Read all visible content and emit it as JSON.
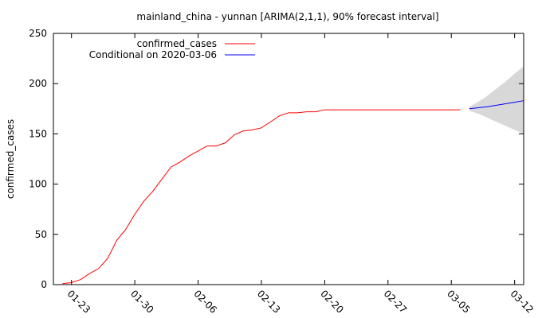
{
  "chart_data": {
    "type": "line",
    "title": "mainland_china - yunnan [ARIMA(2,1,1), 90% forecast interval]",
    "xlabel": "",
    "ylabel": "confirmed_cases",
    "ylim": [
      0,
      250
    ],
    "yticks": [
      "0",
      "50",
      "100",
      "150",
      "200",
      "250"
    ],
    "xlim": [
      "2020-01-21",
      "2020-03-13"
    ],
    "xticks": [
      {
        "date": "2020-01-23",
        "label": "01-23"
      },
      {
        "date": "2020-01-30",
        "label": "01-30"
      },
      {
        "date": "2020-02-06",
        "label": "02-06"
      },
      {
        "date": "2020-02-13",
        "label": "02-13"
      },
      {
        "date": "2020-02-20",
        "label": "02-20"
      },
      {
        "date": "2020-02-27",
        "label": "02-27"
      },
      {
        "date": "2020-03-05",
        "label": "03-05"
      },
      {
        "date": "2020-03-12",
        "label": "03-12"
      }
    ],
    "grid": false,
    "legend_position": "top-left",
    "series": [
      {
        "name": "confirmed_cases",
        "color": "#ff0000",
        "x": [
          "2020-01-22",
          "2020-01-23",
          "2020-01-24",
          "2020-01-25",
          "2020-01-26",
          "2020-01-27",
          "2020-01-28",
          "2020-01-29",
          "2020-01-30",
          "2020-01-31",
          "2020-02-01",
          "2020-02-02",
          "2020-02-03",
          "2020-02-04",
          "2020-02-05",
          "2020-02-06",
          "2020-02-07",
          "2020-02-08",
          "2020-02-09",
          "2020-02-10",
          "2020-02-11",
          "2020-02-12",
          "2020-02-13",
          "2020-02-14",
          "2020-02-15",
          "2020-02-16",
          "2020-02-17",
          "2020-02-18",
          "2020-02-19",
          "2020-02-20",
          "2020-02-21",
          "2020-02-22",
          "2020-02-23",
          "2020-02-24",
          "2020-02-25",
          "2020-02-26",
          "2020-02-27",
          "2020-02-28",
          "2020-02-29",
          "2020-03-01",
          "2020-03-02",
          "2020-03-03",
          "2020-03-04",
          "2020-03-05",
          "2020-03-06"
        ],
        "values": [
          1,
          2,
          5,
          11,
          16,
          26,
          44,
          55,
          70,
          83,
          93,
          105,
          117,
          122,
          128,
          133,
          138,
          138,
          141,
          149,
          153,
          154,
          156,
          162,
          168,
          171,
          171,
          172,
          172,
          174,
          174,
          174,
          174,
          174,
          174,
          174,
          174,
          174,
          174,
          174,
          174,
          174,
          174,
          174,
          174
        ]
      },
      {
        "name": "Conditional on 2020-03-06",
        "color": "#0000ff",
        "x": [
          "2020-03-07",
          "2020-03-08",
          "2020-03-09",
          "2020-03-10",
          "2020-03-11",
          "2020-03-12",
          "2020-03-13"
        ],
        "values": [
          175,
          176,
          177,
          178.5,
          180,
          181.5,
          183
        ],
        "lower": [
          173,
          170,
          166,
          162,
          158,
          154,
          150
        ],
        "upper": [
          177,
          182,
          188,
          195,
          202,
          210,
          217
        ]
      }
    ]
  }
}
